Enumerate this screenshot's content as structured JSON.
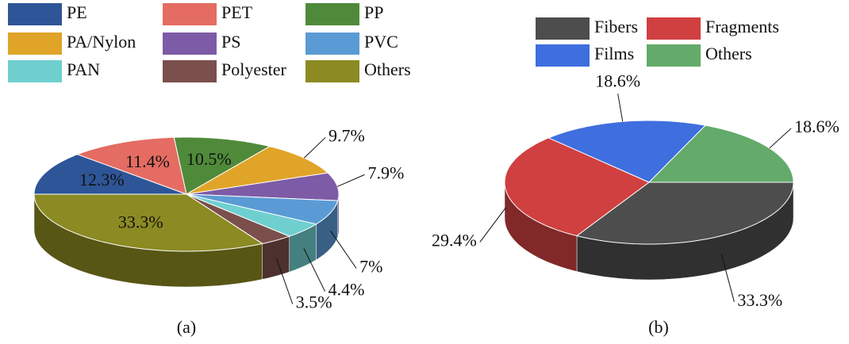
{
  "chart_data": [
    {
      "type": "pie3d",
      "caption": "(a)",
      "categories": [
        "PE",
        "PET",
        "PP",
        "PA/Nylon",
        "PS",
        "PVC",
        "PAN",
        "Polyester",
        "Others"
      ],
      "values": [
        12.3,
        11.4,
        10.5,
        9.7,
        7.9,
        7,
        4.4,
        3.5,
        33.3
      ],
      "value_labels": [
        "12.3%",
        "11.4%",
        "10.5%",
        "9.7%",
        "7.9%",
        "7%",
        "4.4%",
        "3.5%",
        "33.3%"
      ],
      "colors": [
        "#2e5597",
        "#e46c62",
        "#4f8a3a",
        "#e0a428",
        "#7d5ba6",
        "#5b9bd5",
        "#6fcfcf",
        "#7a4f4c",
        "#8c8a22"
      ]
    },
    {
      "type": "pie3d",
      "caption": "(b)",
      "categories": [
        "Fibers",
        "Fragments",
        "Films",
        "Others"
      ],
      "values": [
        33.3,
        29.4,
        18.6,
        18.6
      ],
      "value_labels": [
        "33.3%",
        "29.4%",
        "18.6%",
        "18.6%"
      ],
      "colors": [
        "#4d4d4d",
        "#d04040",
        "#3f6ede",
        "#64aa6a"
      ]
    }
  ]
}
